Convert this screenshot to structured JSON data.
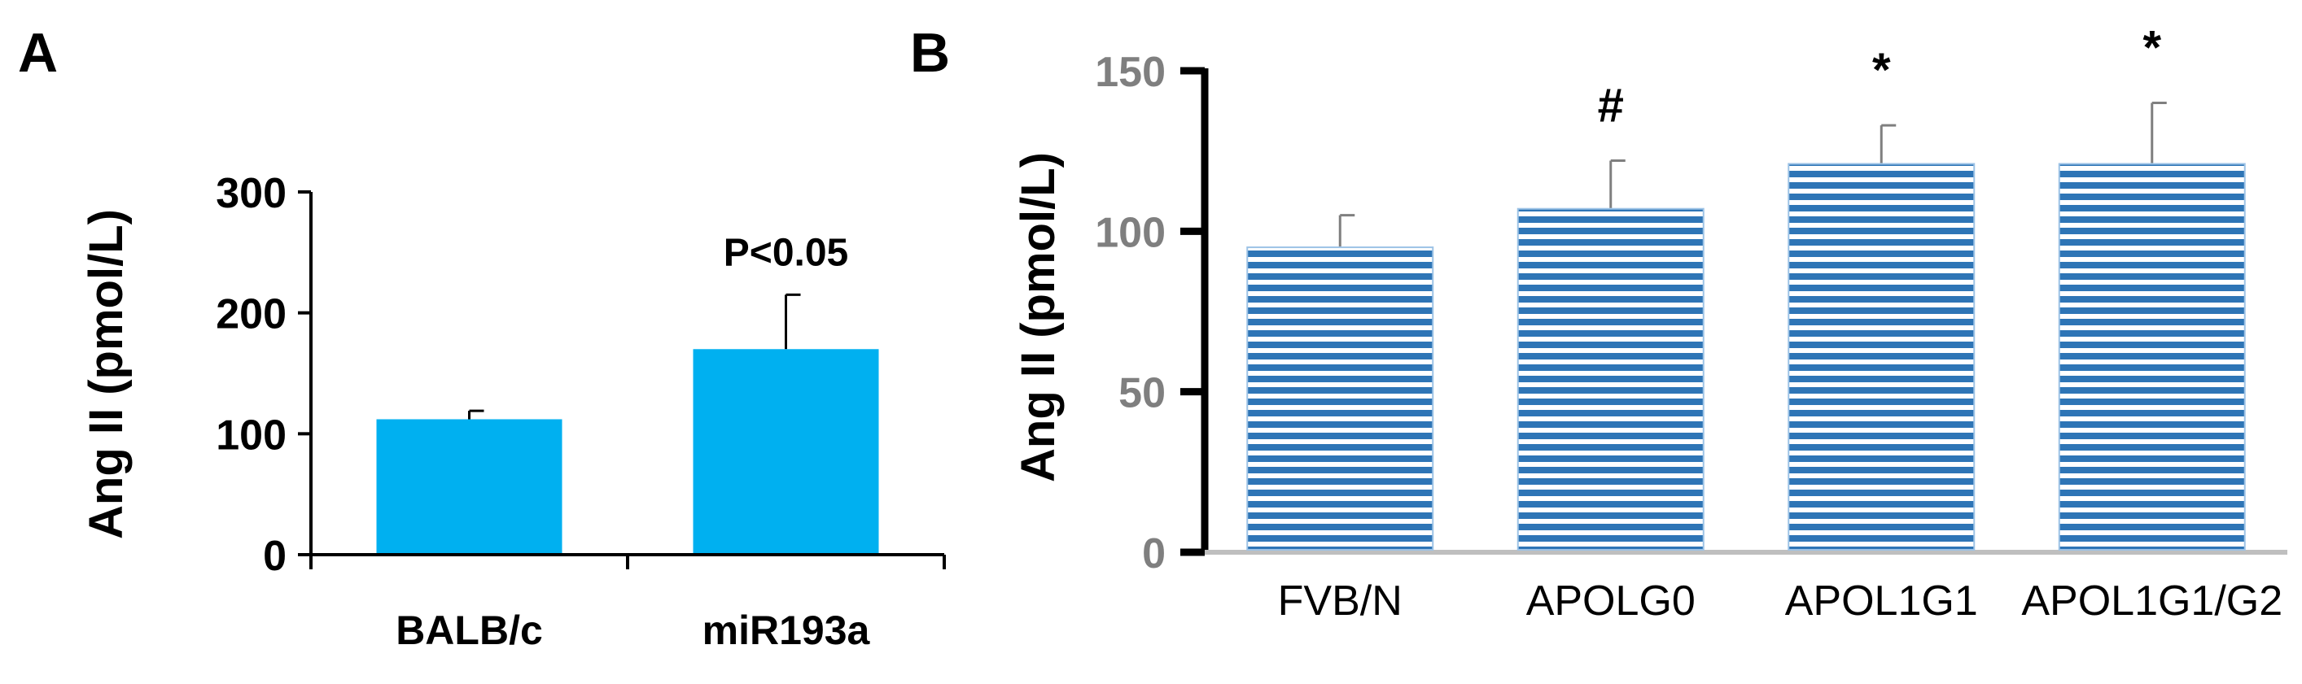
{
  "chart_data": [
    {
      "panel_label": "A",
      "type": "bar",
      "ylabel": "Ang II (pmol/L)",
      "xlabel": "",
      "ylim": [
        0,
        300
      ],
      "yticks": [
        0,
        100,
        200,
        300
      ],
      "categories": [
        "BALB/c",
        "miR193a"
      ],
      "values": [
        112,
        170
      ],
      "errors": [
        7,
        45
      ],
      "annotations": [
        "",
        "P<0.05"
      ],
      "colors": {
        "bar": "#00B0F0",
        "axis": "#000000",
        "text": "#000000"
      }
    },
    {
      "panel_label": "B",
      "type": "bar",
      "ylabel": "Ang II (pmol/L)",
      "xlabel": "",
      "ylim": [
        0,
        150
      ],
      "yticks": [
        0,
        50,
        100,
        150
      ],
      "categories": [
        "FVB/N",
        "APOLG0",
        "APOL1G1",
        "APOL1G1/G2"
      ],
      "values": [
        95,
        107,
        121,
        121
      ],
      "errors": [
        10,
        15,
        12,
        19
      ],
      "annotations": [
        "",
        "#",
        "*",
        "*"
      ],
      "colors": {
        "stripe": "#2E75B6",
        "gap": "#ffffff",
        "axis": "#000000",
        "baseline": "#BFBFBF",
        "tick_text": "#7F7F7F",
        "error": "#7F7F7F"
      }
    }
  ]
}
